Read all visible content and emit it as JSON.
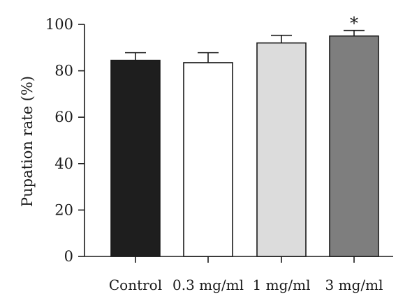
{
  "chart_data": {
    "type": "bar",
    "title": "",
    "xlabel": "",
    "ylabel": "Pupation rate (%)",
    "ylim": [
      0,
      100
    ],
    "yticks": [
      0,
      20,
      40,
      60,
      80,
      100
    ],
    "grid": false,
    "categories": [
      "Control",
      "0.3 mg/ml",
      "1 mg/ml",
      "3 mg/ml"
    ],
    "values": [
      84.5,
      83.5,
      92,
      95
    ],
    "errors": [
      3.3,
      4.3,
      3.3,
      2.4
    ],
    "bar_colors": [
      "#1e1e1e",
      "#ffffff",
      "#dcdcdc",
      "#7e7e7e"
    ],
    "annotations": [
      {
        "category": "3 mg/ml",
        "text": "*"
      }
    ]
  }
}
